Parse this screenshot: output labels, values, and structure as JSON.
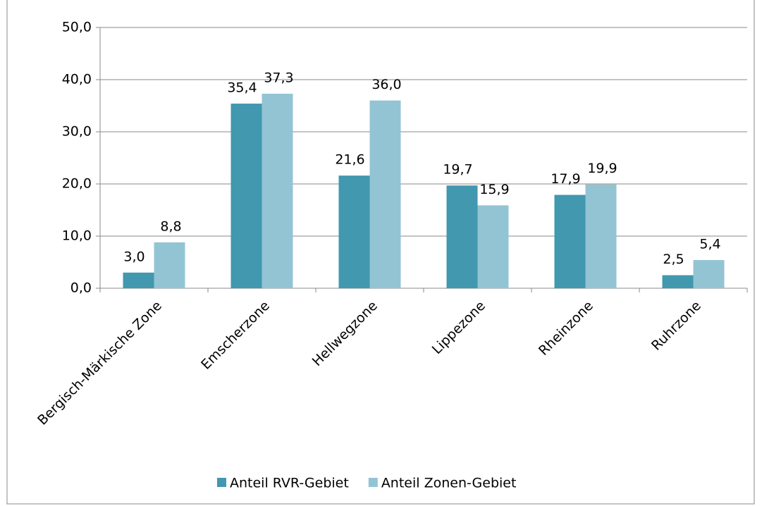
{
  "chart_data": {
    "type": "bar",
    "categories": [
      "Bergisch-Märkische Zone",
      "Emscherzone",
      "Hellwegzone",
      "Lippezone",
      "Rheinzone",
      "Ruhrzone"
    ],
    "series": [
      {
        "name": "Anteil RVR-Gebiet",
        "color": "#4198af",
        "values": [
          3.0,
          35.4,
          21.6,
          19.7,
          17.9,
          2.5
        ],
        "value_labels": [
          "3,0",
          "35,4",
          "21,6",
          "19,7",
          "17,9",
          "2,5"
        ]
      },
      {
        "name": "Anteil Zonen-Gebiet",
        "color": "#93c4d4",
        "values": [
          8.8,
          37.3,
          36.0,
          15.9,
          19.9,
          5.4
        ],
        "value_labels": [
          "8,8",
          "37,3",
          "36,0",
          "15,9",
          "19,9",
          "5,4"
        ]
      }
    ],
    "ylim": [
      0,
      50
    ],
    "yticks": [
      {
        "value": 0,
        "label": "0,0"
      },
      {
        "value": 10,
        "label": "10,0"
      },
      {
        "value": 20,
        "label": "20,0"
      },
      {
        "value": 30,
        "label": "30,0"
      },
      {
        "value": 40,
        "label": "40,0"
      },
      {
        "value": 50,
        "label": "50,0"
      }
    ],
    "grid": true,
    "legend": "bottom"
  }
}
